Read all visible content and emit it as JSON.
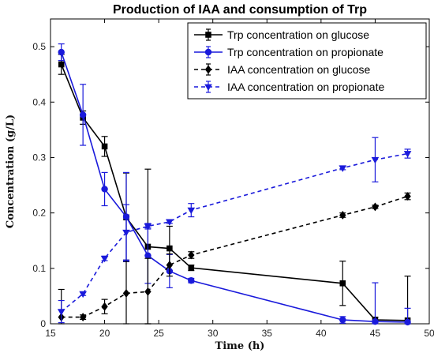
{
  "chart_data": {
    "type": "line",
    "title": "Production of IAA and consumption of Trp",
    "xlabel": "Time (h)",
    "ylabel": "Concentration (g/L)",
    "xlim": [
      15,
      50
    ],
    "ylim": [
      0,
      0.55
    ],
    "xticks": [
      15,
      20,
      25,
      30,
      35,
      40,
      45,
      50
    ],
    "xtick_labels": [
      "15",
      "20",
      "25",
      "30",
      "35",
      "40",
      "45",
      "50"
    ],
    "yticks": [
      0,
      0.1,
      0.2,
      0.3,
      0.4,
      0.5
    ],
    "ytick_labels": [
      "0",
      "0.1",
      "0.2",
      "0.3",
      "0.4",
      "0.5"
    ],
    "grid": false,
    "legend_position": "top-right",
    "series": [
      {
        "name": "Trp concentration on glucose",
        "color": "#000000",
        "dash": "solid",
        "marker": "square",
        "x": [
          16,
          18,
          20,
          22,
          24,
          26,
          28,
          42,
          45,
          48
        ],
        "y": [
          0.468,
          0.372,
          0.32,
          0.192,
          0.139,
          0.136,
          0.101,
          0.073,
          0.007,
          0.006
        ],
        "err": [
          0.018,
          0.012,
          0.018,
          0.08,
          0.14,
          0.04,
          0.005,
          0.04,
          0.005,
          0.08
        ]
      },
      {
        "name": "Trp concentration on propionate",
        "color": "#1a1adb",
        "dash": "solid",
        "marker": "circle",
        "x": [
          16,
          18,
          20,
          22,
          24,
          26,
          28,
          42,
          45,
          48
        ],
        "y": [
          0.49,
          0.377,
          0.243,
          0.193,
          0.123,
          0.095,
          0.078,
          0.007,
          0.004,
          0.003
        ],
        "err": [
          0.015,
          0.055,
          0.03,
          0.08,
          0.05,
          0.03,
          0.004,
          0.006,
          0.07,
          0.025
        ]
      },
      {
        "name": "IAA concentration on glucose",
        "color": "#000000",
        "dash": "dashed",
        "marker": "diamond",
        "x": [
          16,
          18,
          20,
          22,
          24,
          26,
          28,
          42,
          45,
          48
        ],
        "y": [
          0.012,
          0.012,
          0.031,
          0.055,
          0.058,
          0.106,
          0.124,
          0.196,
          0.211,
          0.23
        ],
        "err": [
          0.05,
          0.004,
          0.013,
          0.06,
          0.06,
          0.02,
          0.006,
          0.004,
          0.003,
          0.006
        ]
      },
      {
        "name": "IAA concentration on propionate",
        "color": "#1a1adb",
        "dash": "dashed",
        "marker": "triangle-down",
        "x": [
          16,
          18,
          20,
          22,
          24,
          26,
          28,
          42,
          45,
          48
        ],
        "y": [
          0.022,
          0.054,
          0.118,
          0.165,
          0.176,
          0.184,
          0.205,
          0.281,
          0.296,
          0.307
        ],
        "err": [
          0.02,
          0.003,
          0.004,
          0.05,
          0.005,
          0.003,
          0.012,
          0.003,
          0.04,
          0.008
        ]
      }
    ]
  }
}
